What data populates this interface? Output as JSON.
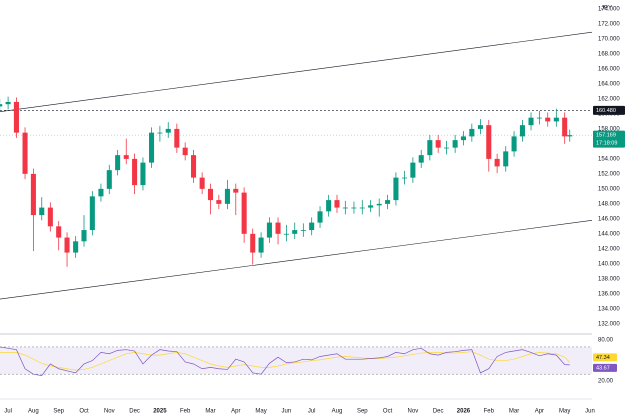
{
  "chart_data": [
    {
      "type": "candlestick",
      "unit": "JPY",
      "x": [
        -0.33,
        0,
        0.33,
        0.67,
        1,
        1.33,
        1.67,
        2,
        2.33,
        2.67,
        3,
        3.33,
        3.67,
        4,
        4.33,
        4.67,
        5,
        5.33,
        5.67,
        6,
        6.33,
        6.67,
        7,
        7.33,
        7.67,
        8,
        8.33,
        8.67,
        9,
        9.33,
        9.67,
        10,
        10.33,
        10.67,
        11,
        11.33,
        11.67,
        12,
        12.33,
        12.67,
        13,
        13.33,
        13.67,
        14,
        14.33,
        14.67,
        15,
        15.33,
        15.67,
        16,
        16.33,
        16.67,
        17,
        17.33,
        17.67,
        18,
        18.33,
        18.67,
        19,
        19.33,
        19.67,
        20,
        20.33,
        20.67,
        21,
        21.33,
        21.67,
        22,
        22.2
      ],
      "open": [
        161.0,
        161.3,
        161.6,
        157.5,
        152.0,
        146.5,
        147.5,
        145.0,
        143.5,
        141.5,
        143.0,
        144.5,
        149.0,
        150.0,
        152.5,
        154.5,
        154.0,
        150.5,
        153.5,
        157.5,
        157.5,
        158.0,
        155.5,
        154.5,
        151.5,
        150.0,
        148.5,
        148.0,
        150.0,
        149.5,
        144.0,
        141.5,
        143.5,
        145.5,
        144.0,
        144.0,
        144.5,
        144.5,
        145.5,
        147.0,
        148.5,
        147.5,
        147.5,
        147.5,
        147.5,
        147.8,
        148.0,
        148.5,
        151.5,
        151.5,
        153.5,
        154.5,
        156.5,
        155.5,
        155.5,
        156.5,
        157.0,
        158.0,
        158.5,
        154.0,
        153.0,
        155.0,
        157.0,
        158.5,
        159.5,
        159.5,
        159.0,
        159.5,
        157.0
      ],
      "high": [
        162.0,
        162.3,
        162.2,
        158.2,
        152.7,
        148.9,
        148.2,
        145.7,
        144.2,
        143.7,
        146.5,
        149.7,
        150.7,
        153.2,
        155.2,
        156.7,
        154.7,
        154.2,
        158.2,
        158.4,
        158.9,
        158.7,
        156.2,
        155.2,
        152.2,
        150.7,
        149.2,
        151.2,
        150.7,
        150.2,
        144.7,
        144.2,
        146.2,
        146.2,
        145.2,
        145.5,
        145.4,
        146.2,
        147.7,
        149.2,
        149.2,
        148.4,
        148.3,
        148.5,
        148.5,
        148.7,
        149.2,
        152.2,
        152.4,
        154.2,
        155.2,
        157.2,
        157.2,
        156.4,
        157.2,
        157.7,
        158.7,
        159.3,
        159.2,
        154.7,
        155.7,
        157.7,
        159.2,
        160.2,
        160.4,
        160.2,
        160.7,
        160.2,
        157.9
      ],
      "low": [
        160.3,
        160.6,
        156.8,
        151.3,
        141.7,
        145.8,
        144.3,
        141.8,
        139.6,
        140.8,
        142.3,
        143.8,
        148.3,
        149.3,
        151.8,
        153.3,
        149.3,
        149.8,
        152.8,
        156.3,
        156.8,
        154.8,
        153.8,
        150.8,
        149.3,
        146.6,
        147.3,
        147.3,
        146.5,
        142.8,
        139.9,
        140.8,
        142.8,
        142.6,
        143.0,
        143.3,
        143.6,
        143.8,
        144.8,
        146.3,
        146.8,
        146.6,
        146.7,
        146.6,
        146.9,
        146.3,
        147.3,
        147.8,
        150.6,
        150.8,
        152.8,
        153.8,
        154.8,
        154.6,
        154.8,
        155.8,
        156.3,
        157.3,
        152.3,
        152.1,
        152.3,
        154.3,
        156.3,
        157.8,
        158.6,
        158.3,
        158.3,
        156.0,
        156.3
      ],
      "close": [
        161.3,
        161.6,
        157.5,
        152.0,
        146.5,
        147.5,
        145.0,
        143.5,
        141.5,
        143.0,
        144.5,
        149.0,
        150.0,
        152.5,
        154.5,
        154.0,
        150.5,
        153.5,
        157.5,
        157.5,
        158.0,
        155.5,
        154.5,
        151.5,
        150.0,
        148.5,
        148.0,
        150.0,
        149.5,
        144.0,
        141.5,
        143.5,
        145.5,
        144.0,
        144.0,
        144.5,
        144.5,
        145.5,
        147.0,
        148.5,
        147.5,
        147.5,
        147.5,
        147.5,
        147.8,
        148.0,
        148.5,
        151.5,
        151.5,
        153.5,
        154.5,
        156.5,
        155.5,
        155.5,
        156.5,
        157.0,
        158.0,
        158.5,
        154.0,
        153.0,
        155.0,
        157.0,
        158.5,
        159.5,
        159.5,
        159.0,
        159.5,
        157.0,
        157.169
      ],
      "up_color": "#089981",
      "down_color": "#f23645",
      "xlim": [
        -0.32,
        23.08
      ],
      "ylim": [
        130.9,
        175.2
      ],
      "xticks": [
        {
          "value": 0,
          "label": "Jul"
        },
        {
          "value": 1,
          "label": "Aug"
        },
        {
          "value": 2,
          "label": "Sep"
        },
        {
          "value": 3,
          "label": "Oct"
        },
        {
          "value": 4,
          "label": "Nov"
        },
        {
          "value": 5,
          "label": "Dec"
        },
        {
          "value": 6,
          "label": "2025"
        },
        {
          "value": 7,
          "label": "Feb"
        },
        {
          "value": 8,
          "label": "Mar"
        },
        {
          "value": 9,
          "label": "Apr"
        },
        {
          "value": 10,
          "label": "May"
        },
        {
          "value": 11,
          "label": "Jun"
        },
        {
          "value": 12,
          "label": "Jul"
        },
        {
          "value": 13,
          "label": "Aug"
        },
        {
          "value": 14,
          "label": "Sep"
        },
        {
          "value": 15,
          "label": "Oct"
        },
        {
          "value": 16,
          "label": "Nov"
        },
        {
          "value": 17,
          "label": "Dec"
        },
        {
          "value": 18,
          "label": "2026"
        },
        {
          "value": 19,
          "label": "Feb"
        },
        {
          "value": 20,
          "label": "Mar"
        },
        {
          "value": 21,
          "label": "Apr"
        },
        {
          "value": 22,
          "label": "May"
        },
        {
          "value": 23,
          "label": "Jun"
        }
      ],
      "yticks": [
        {
          "value": 132,
          "label": "132.000"
        },
        {
          "value": 134,
          "label": "134.000"
        },
        {
          "value": 136,
          "label": "136.000"
        },
        {
          "value": 138,
          "label": "138.000"
        },
        {
          "value": 140,
          "label": "140.000"
        },
        {
          "value": 142,
          "label": "142.000"
        },
        {
          "value": 144,
          "label": "144.000"
        },
        {
          "value": 146,
          "label": "146.000"
        },
        {
          "value": 148,
          "label": "148.000"
        },
        {
          "value": 150,
          "label": "150.000"
        },
        {
          "value": 152,
          "label": "152.000"
        },
        {
          "value": 154,
          "label": "154.000"
        },
        {
          "value": 156,
          "label": "156.000"
        },
        {
          "value": 158,
          "label": "158.000"
        },
        {
          "value": 160,
          "label": "160.000"
        },
        {
          "value": 162,
          "label": "162.000"
        },
        {
          "value": 164,
          "label": "164.000"
        },
        {
          "value": 166,
          "label": "166.000"
        },
        {
          "value": 168,
          "label": "168.000"
        },
        {
          "value": 170,
          "label": "170.000"
        },
        {
          "value": 172,
          "label": "172.000"
        },
        {
          "value": 174,
          "label": "174.000"
        }
      ],
      "reference_line": {
        "value": 160.48,
        "label": "160.480"
      },
      "countdown": "17:18:09",
      "trendlines": [
        {
          "start": [
            -0.32,
            160.3
          ],
          "end": [
            23.08,
            170.9
          ]
        },
        {
          "start": [
            -0.32,
            135.3
          ],
          "end": [
            23.08,
            145.8
          ]
        }
      ]
    },
    {
      "type": "line",
      "ylim": [
        -2,
        89
      ],
      "yticks": [
        {
          "value": 80,
          "label": "80.00"
        },
        {
          "value": 20,
          "label": "20.00"
        }
      ],
      "band": [
        30,
        70
      ],
      "series": [
        {
          "color": "#7e57c2",
          "values": [
            70,
            68,
            66,
            38,
            30,
            28,
            45,
            38,
            35,
            32,
            45,
            50,
            62,
            60,
            65,
            66,
            64,
            45,
            58,
            66,
            64,
            63,
            48,
            45,
            38,
            40,
            38,
            37,
            52,
            48,
            32,
            30,
            46,
            55,
            47,
            48,
            52,
            51,
            56,
            58,
            60,
            52,
            52,
            52,
            53,
            54,
            56,
            62,
            60,
            66,
            68,
            60,
            58,
            62,
            63,
            65,
            66,
            32,
            38,
            56,
            62,
            64,
            66,
            62,
            57,
            60,
            58,
            44,
            43.67
          ]
        },
        {
          "color": "#fdd835",
          "values": [
            62,
            62,
            62,
            58,
            52,
            46,
            42,
            40,
            38,
            36,
            37,
            40,
            45,
            50,
            55,
            60,
            62,
            60,
            58,
            58,
            60,
            62,
            60,
            55,
            50,
            45,
            42,
            40,
            42,
            44,
            42,
            40,
            40,
            42,
            45,
            47,
            48,
            50,
            51,
            53,
            55,
            56,
            55,
            54,
            53,
            53,
            54,
            55,
            57,
            59,
            61,
            62,
            62,
            61,
            61,
            62,
            63,
            58,
            52,
            50,
            50,
            52,
            56,
            60,
            62,
            61,
            60,
            55,
            47.34
          ]
        }
      ]
    }
  ]
}
